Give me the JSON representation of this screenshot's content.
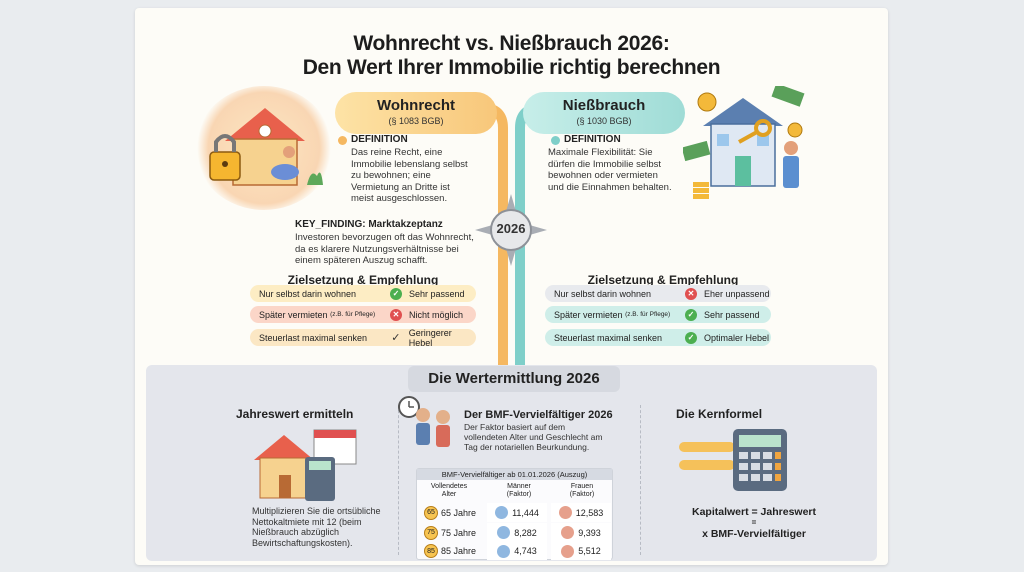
{
  "header": {
    "title_line1": "Wohnrecht vs. Nießbrauch 2026:",
    "title_line2": "Den Wert Ihrer Immobilie richtig berechnen"
  },
  "center_badge": "2026",
  "left": {
    "tag_title": "Wohnrecht",
    "tag_sub": "(§ 1083 BGB)",
    "def_head": "DEFINITION",
    "def_text": [
      "Das reine Recht, eine",
      "Immobilie lebenslang selbst",
      "zu bewohnen; eine",
      "Vermietung an Dritte ist",
      "meist ausgeschlossen."
    ],
    "key_head": "KEY_FINDING: Marktakzeptanz",
    "key_text": [
      "Investoren bevorzugen oft das Wohnrecht,",
      "da es klarere Nutzungsverhältnisse bei",
      "einem späteren Auszug schafft."
    ],
    "section_heading": "Zielsetzung & Empfehlung",
    "rows": [
      {
        "label": "Nur selbst darin wohnen",
        "note": "",
        "result": "Sehr passend",
        "icon": "check-circle",
        "bg": "#fdedc4"
      },
      {
        "label": "Später vermieten",
        "note": "(z.B. für Pflege)",
        "result": "Nicht möglich",
        "icon": "x-circle",
        "bg": "#fbd6c8"
      },
      {
        "label": "Steuerlast maximal senken",
        "note": "",
        "result": "Geringerer Hebel",
        "icon": "checkmark",
        "bg": "#fbe7c4"
      }
    ]
  },
  "right": {
    "tag_title": "Nießbrauch",
    "tag_sub": "(§ 1030 BGB)",
    "def_head": "DEFINITION",
    "def_text": [
      "Maximale Flexibilität: Sie",
      "dürfen die Immobilie selbst",
      "bewohnen oder vermieten",
      "und die Einnahmen behalten."
    ],
    "section_heading": "Zielsetzung & Empfehlung",
    "rows": [
      {
        "label": "Nur selbst darin wohnen",
        "note": "",
        "result": "Eher unpassend",
        "icon": "x-circle",
        "bg": "#e8eaee"
      },
      {
        "label": "Später vermieten",
        "note": "(z.B. für Pflege)",
        "result": "Sehr passend",
        "icon": "check-circle",
        "bg": "#cfeee9"
      },
      {
        "label": "Steuerlast maximal senken",
        "note": "",
        "result": "Optimaler Hebel",
        "icon": "check-circle",
        "bg": "#cfeee9"
      }
    ]
  },
  "bottom": {
    "heading": "Die Wertermittlung 2026",
    "col1": {
      "heading": "Jahreswert ermitteln",
      "text": [
        "Multiplizieren Sie die ortsübliche",
        "Nettokaltmiete mit 12 (beim",
        "Nießbrauch abzüglich",
        "Bewirtschaftungskosten)."
      ]
    },
    "col2": {
      "heading": "Der BMF-Vervielfältiger 2026",
      "text": [
        "Der Faktor basiert auf dem",
        "vollendeten Alter und Geschlecht am",
        "Tag der notariellen Beurkundung."
      ],
      "table_caption": "BMF-Vervielfältiger ab 01.01.2026 (Auszug)",
      "headers": [
        [
          "Vollendetes",
          "Alter"
        ],
        [
          "Männer",
          "(Faktor)"
        ],
        [
          "Frauen",
          "(Faktor)"
        ]
      ],
      "rows": [
        {
          "badge": "65",
          "age": "65 Jahre",
          "men": "11,444",
          "women": "12,583"
        },
        {
          "badge": "75",
          "age": "75 Jahre",
          "men": "8,282",
          "women": "9,393"
        },
        {
          "badge": "85",
          "age": "85 Jahre",
          "men": "4,743",
          "women": "5,512"
        }
      ]
    },
    "col3": {
      "heading": "Die Kernformel",
      "formula_line1": "Kapitalwert = Jahreswert",
      "formula_eq": "=",
      "formula_line2": "x BMF-Vervielfältiger"
    }
  },
  "colors": {
    "amber": "#f5b861",
    "teal": "#7fcfc9",
    "check": "#4caf50",
    "cross": "#e05050"
  }
}
